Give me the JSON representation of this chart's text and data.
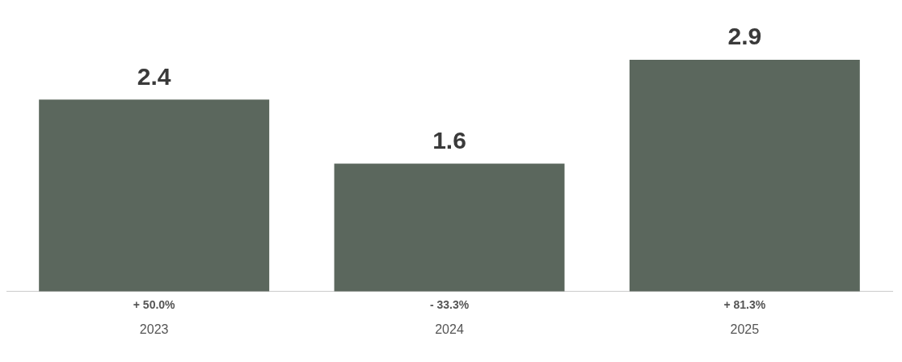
{
  "chart_data": {
    "type": "bar",
    "categories": [
      "2023",
      "2024",
      "2025"
    ],
    "values": [
      2.4,
      1.6,
      2.9
    ],
    "color": "#5b675d",
    "data_labels": true,
    "annotations": [
      {
        "text": "+ 50.0%",
        "x": "2023",
        "y": 0
      },
      {
        "text": "- 33.3%",
        "x": "2024",
        "y": 0
      },
      {
        "text": "+ 81.3%",
        "x": "2025",
        "y": 0
      }
    ],
    "grid": false,
    "legend": false
  }
}
